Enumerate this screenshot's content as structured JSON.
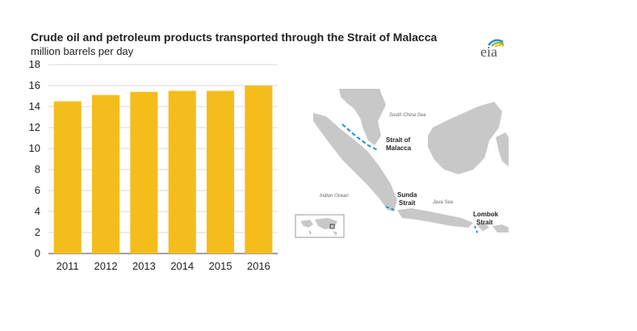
{
  "chart_data": {
    "type": "bar",
    "title": "Crude oil and petroleum products transported through the Strait of Malacca",
    "ylabel": "million barrels per day",
    "xlabel": "",
    "categories": [
      "2011",
      "2012",
      "2013",
      "2014",
      "2015",
      "2016"
    ],
    "values": [
      14.5,
      15.1,
      15.4,
      15.5,
      15.5,
      16.0
    ],
    "ylim": [
      0,
      18
    ],
    "yticks": [
      0,
      2,
      4,
      6,
      8,
      10,
      12,
      14,
      16,
      18
    ],
    "grid": true,
    "bar_color": "#F4BD1C"
  },
  "logo": {
    "text": "eia",
    "colors": [
      "#2E8BC0",
      "#7CB342",
      "#F4BD1C"
    ]
  },
  "map": {
    "labels": {
      "south_china_sea": "South China Sea",
      "strait_malacca_1": "Strait of",
      "strait_malacca_2": "Malacca",
      "indian_ocean": "Indian Ocean",
      "sunda_1": "Sunda",
      "sunda_2": "Strait",
      "java_sea": "Java Sea",
      "lombok_1": "Lombok",
      "lombok_2": "Strait"
    },
    "land_color": "#C8C8C8",
    "route_color": "#1E8FD6"
  }
}
